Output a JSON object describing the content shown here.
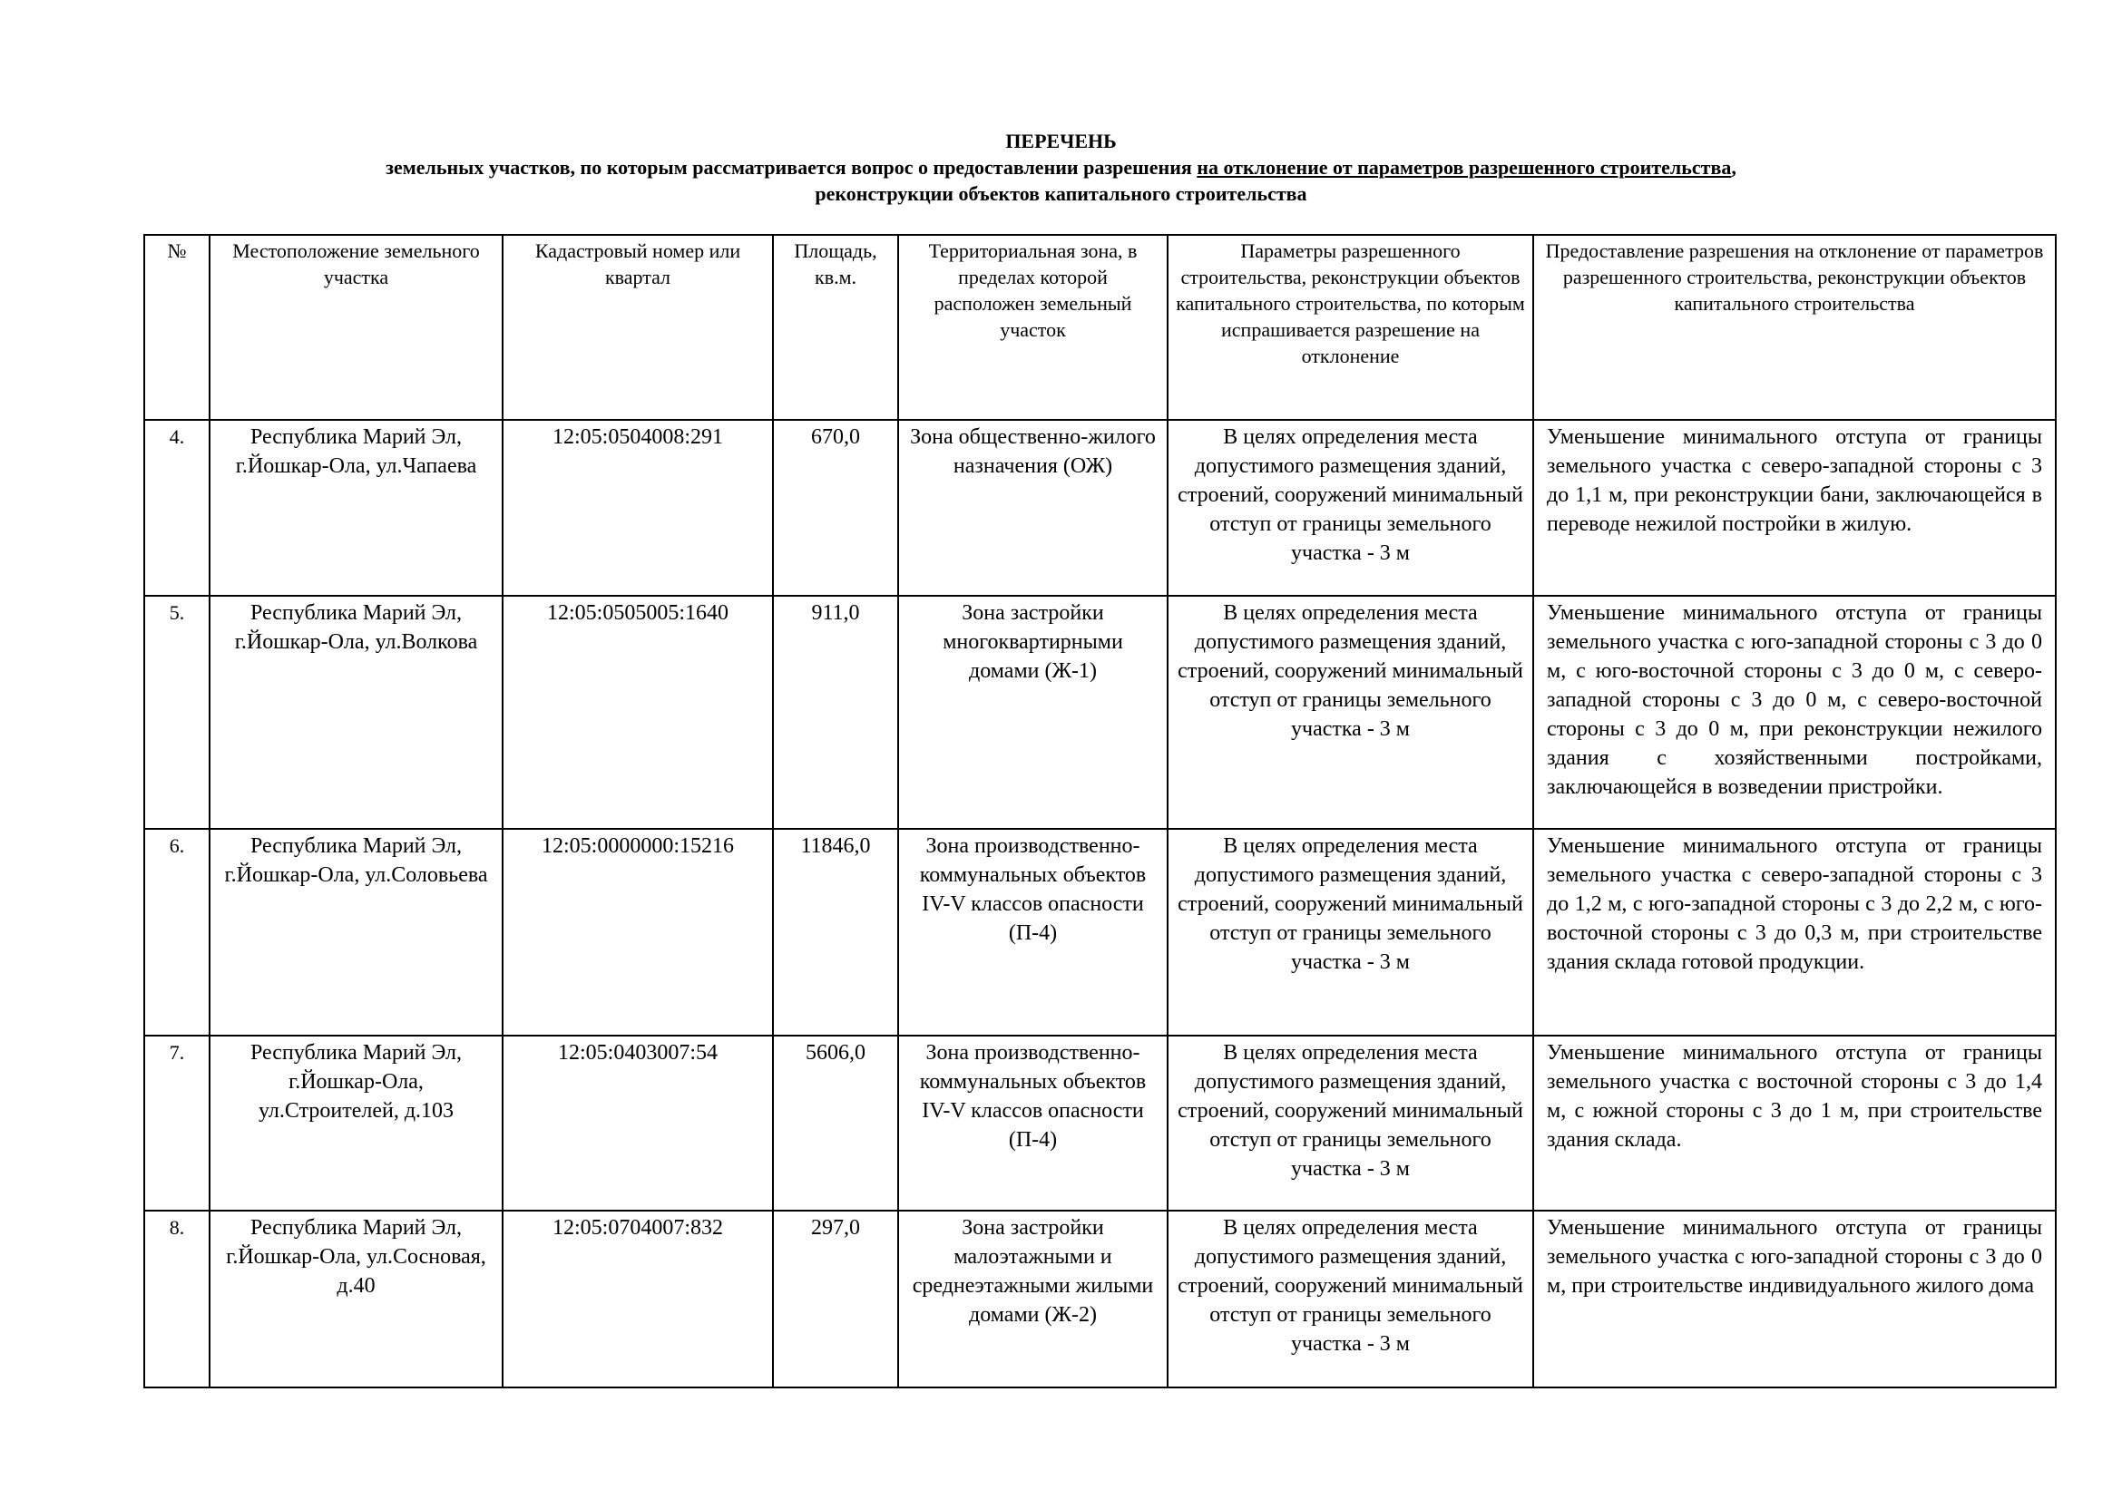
{
  "title": {
    "line1": "ПЕРЕЧЕНЬ",
    "line2_plain": "земельных участков, по которым рассматривается вопрос о предоставлении разрешения ",
    "line2_underlined": "на отклонение от параметров разрешенного строительства",
    "line2_end": ",",
    "line3": "реконструкции объектов капитального строительства"
  },
  "table": {
    "headers": [
      "№",
      "Местоположение земельного участка",
      "Кадастровый номер или квартал",
      "Площадь, кв.м.",
      "Территориальная зона, в пределах которой расположен земельный участок",
      "Параметры разрешенного строительства, реконструкции объектов капитального строительства, по которым испрашивается разрешение на отклонение",
      "Предоставление разрешения на отклонение от параметров разрешенного строительства, реконструкции объектов капитального строительства"
    ],
    "rows": [
      {
        "num": "4.",
        "location": "Республика Марий Эл, г.Йошкар-Ола, ул.Чапаева",
        "cadastral": "12:05:0504008:291",
        "area": "670,0",
        "zone": "Зона общественно-жилого назначения (ОЖ)",
        "params": "В целях определения места допустимого размещения зданий, строений, сооружений минимальный отступ от границы земельного участка - 3 м",
        "request": "Уменьшение минимального отступа от границы земельного участка с северо-западной стороны с 3 до 1,1 м, при реконструкции бани, заключающейся в переводе нежилой постройки в жилую."
      },
      {
        "num": "5.",
        "location": "Республика Марий Эл, г.Йошкар-Ола, ул.Волкова",
        "cadastral": "12:05:0505005:1640",
        "area": "911,0",
        "zone": "Зона застройки многоквартирными домами (Ж-1)",
        "params": "В целях определения места допустимого размещения зданий, строений, сооружений минимальный отступ от границы земельного участка - 3 м",
        "request": "Уменьшение минимального отступа от границы земельного участка с юго-западной стороны с 3 до 0 м, с юго-восточной стороны с 3 до 0 м, с северо-западной стороны с 3 до 0 м, с северо-восточной стороны с 3 до 0 м, при реконструкции нежилого здания с хозяйственными постройками, заключающейся в возведении пристройки."
      },
      {
        "num": "6.",
        "location": "Республика Марий Эл, г.Йошкар-Ола, ул.Соловьева",
        "cadastral": "12:05:0000000:15216",
        "area": "11846,0",
        "zone": "Зона производственно-коммунальных объектов IV-V классов опасности (П-4)",
        "params": "В целях определения места допустимого размещения зданий, строений, сооружений минимальный отступ от границы земельного участка - 3 м",
        "request": "Уменьшение минимального отступа от границы земельного участка с северо-западной стороны с 3 до 1,2 м, с юго-западной стороны с 3 до 2,2 м, с юго-восточной стороны с 3 до 0,3 м, при строительстве здания склада готовой продукции."
      },
      {
        "num": "7.",
        "location": "Республика Марий Эл, г.Йошкар-Ола, ул.Строителей, д.103",
        "cadastral": "12:05:0403007:54",
        "area": "5606,0",
        "zone": "Зона производственно-коммунальных объектов IV-V классов опасности (П-4)",
        "params": "В целях определения места допустимого размещения зданий, строений, сооружений минимальный отступ от границы земельного участка - 3 м",
        "request": "Уменьшение минимального отступа от границы земельного участка с восточной стороны с 3 до 1,4 м, с южной стороны с 3 до 1 м, при строительстве здания склада."
      },
      {
        "num": "8.",
        "location": "Республика Марий Эл, г.Йошкар-Ола, ул.Сосновая, д.40",
        "cadastral": "12:05:0704007:832",
        "area": "297,0",
        "zone": "Зона застройки малоэтажными и среднеэтажными жилыми домами (Ж-2)",
        "params": "В целях определения места допустимого размещения зданий, строений, сооружений минимальный отступ от границы земельного участка - 3 м",
        "request": "Уменьшение минимального отступа от границы земельного участка с юго-западной стороны с 3 до 0 м, при строительстве индивидуального жилого дома"
      }
    ]
  }
}
